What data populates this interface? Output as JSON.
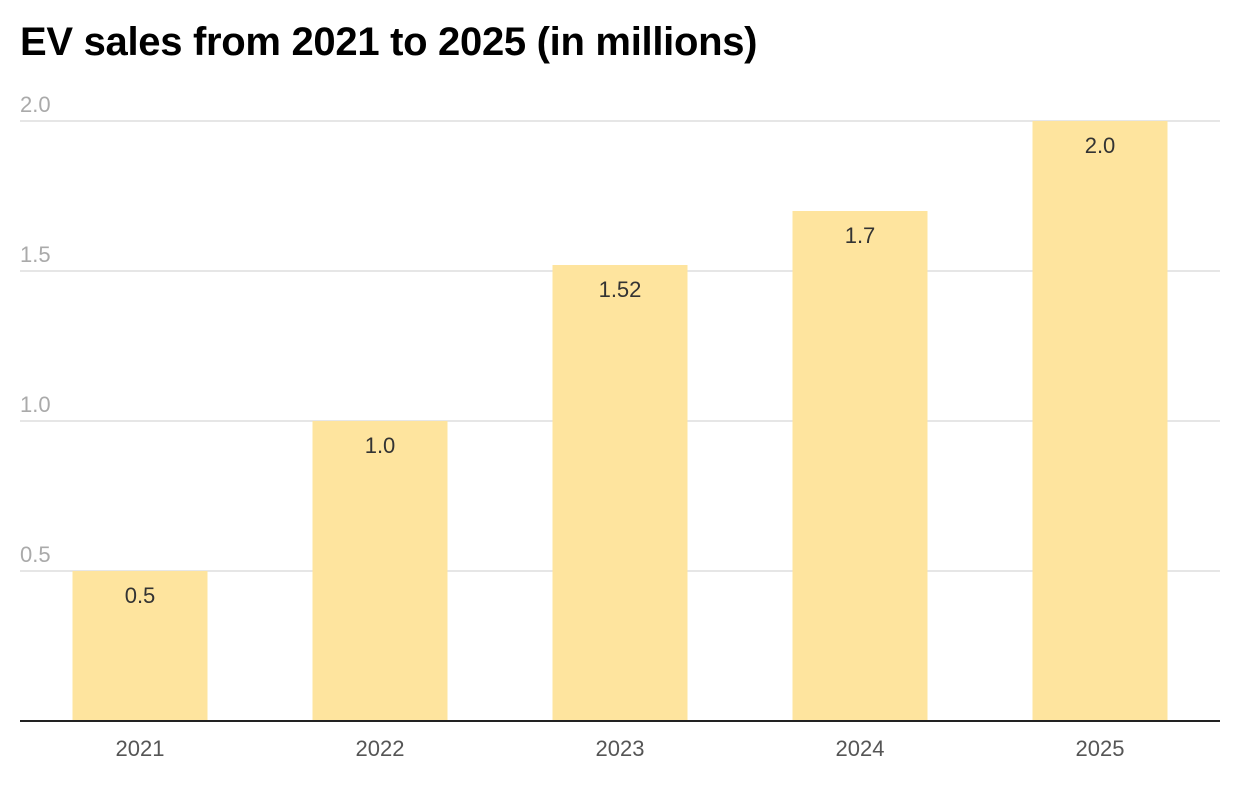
{
  "chart_data": {
    "type": "bar",
    "title": "EV sales from 2021 to 2025 (in millions)",
    "xlabel": "",
    "ylabel": "",
    "categories": [
      "2021",
      "2022",
      "2023",
      "2024",
      "2025"
    ],
    "values": [
      0.5,
      1.0,
      1.52,
      1.7,
      2.0
    ],
    "value_labels": [
      "0.5",
      "1.0",
      "1.52",
      "1.7",
      "2.0"
    ],
    "ylim": [
      0,
      2.0
    ],
    "y_ticks": [
      0.5,
      1.0,
      1.5,
      2.0
    ],
    "y_tick_labels": [
      "0.5",
      "1.0",
      "1.5",
      "2.0"
    ],
    "grid": true,
    "legend": "none",
    "colors": {
      "bar": "#fee49e",
      "grid": "#dddddd",
      "baseline": "#222222",
      "y_tick_text": "#aaaaaa",
      "x_tick_text": "#555555",
      "label_text": "#333333",
      "title_text": "#000000"
    }
  }
}
